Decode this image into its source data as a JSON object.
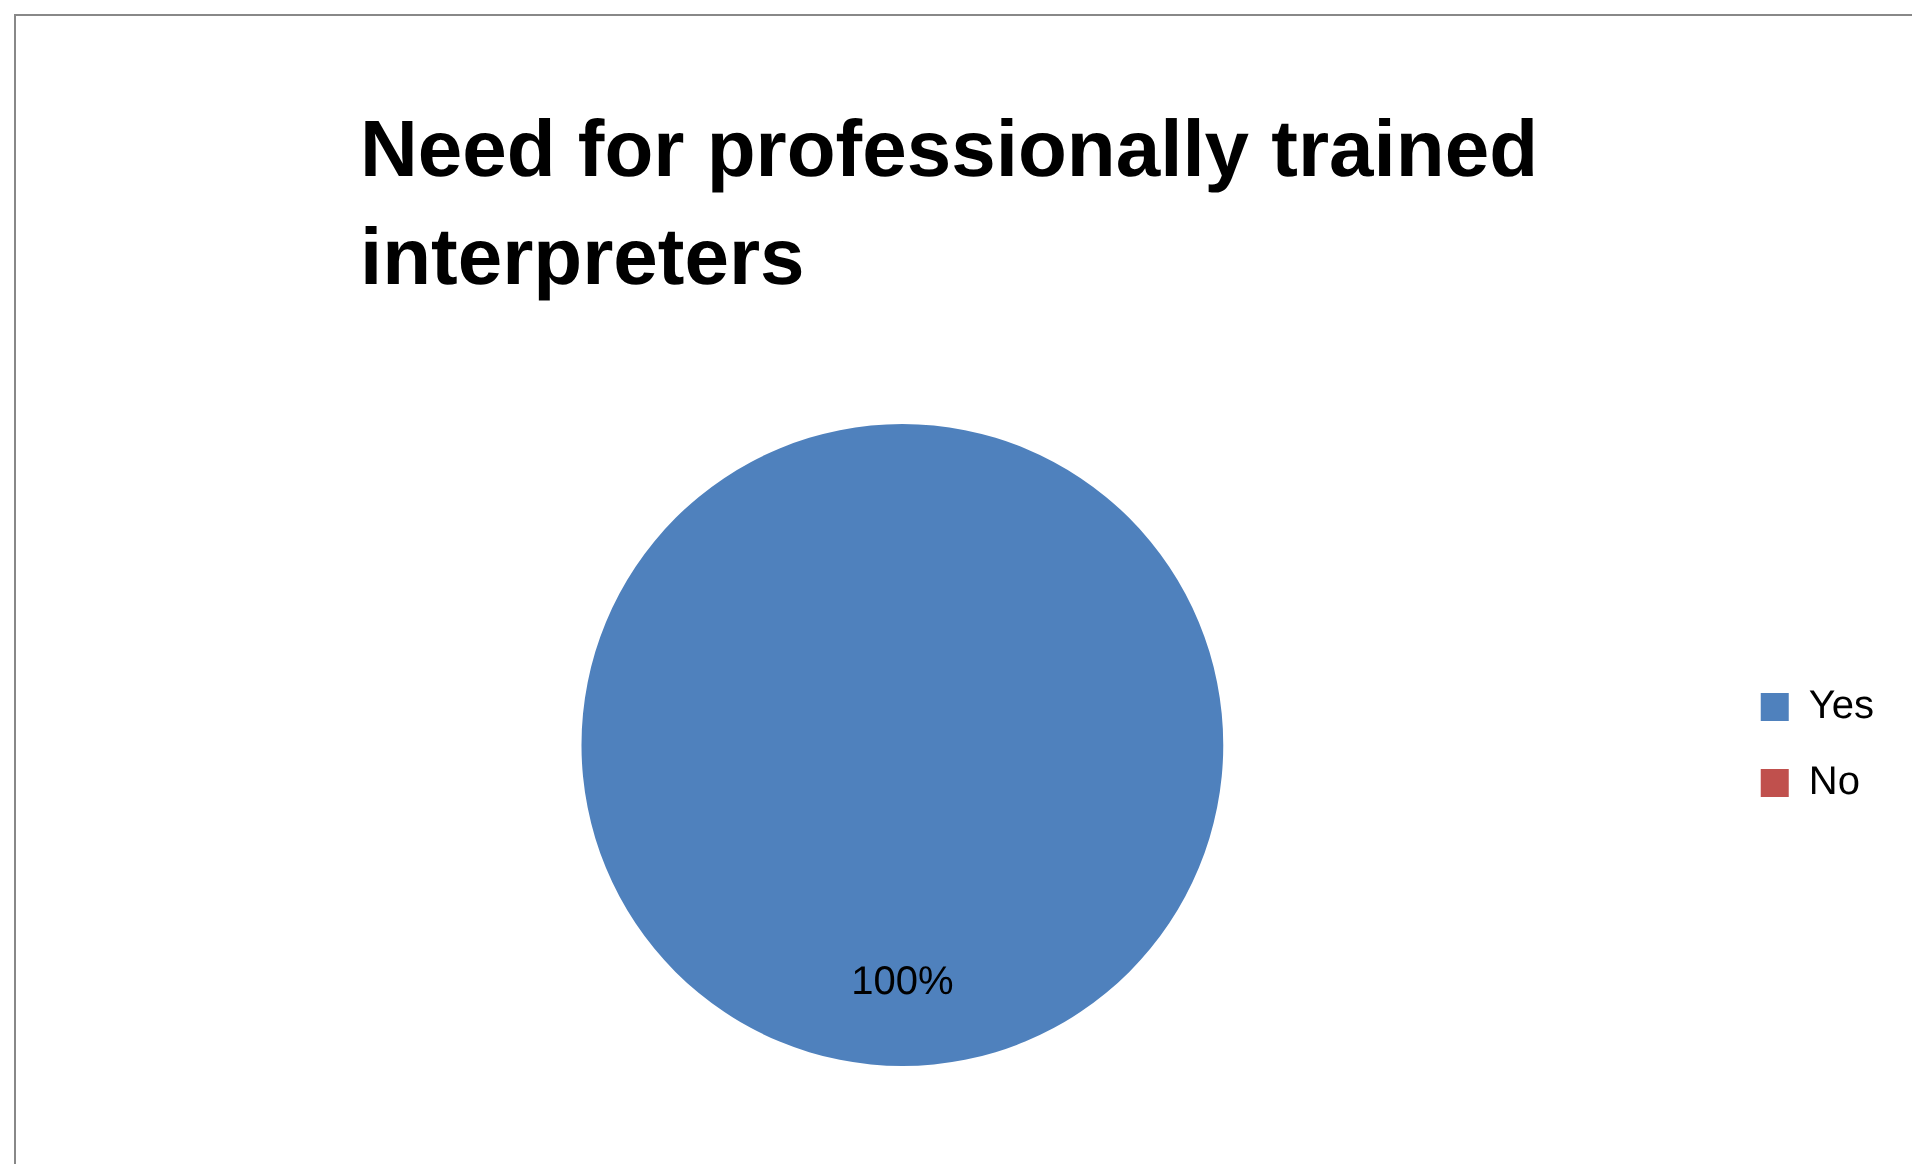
{
  "chart_data": {
    "type": "pie",
    "title": "Need for professionally trained interpreters",
    "categories": [
      "Yes",
      "No"
    ],
    "values": [
      100,
      0
    ],
    "colors": [
      "#4f81bd",
      "#c0504d"
    ],
    "value_labels": [
      "100%",
      null
    ],
    "legend": "right"
  }
}
